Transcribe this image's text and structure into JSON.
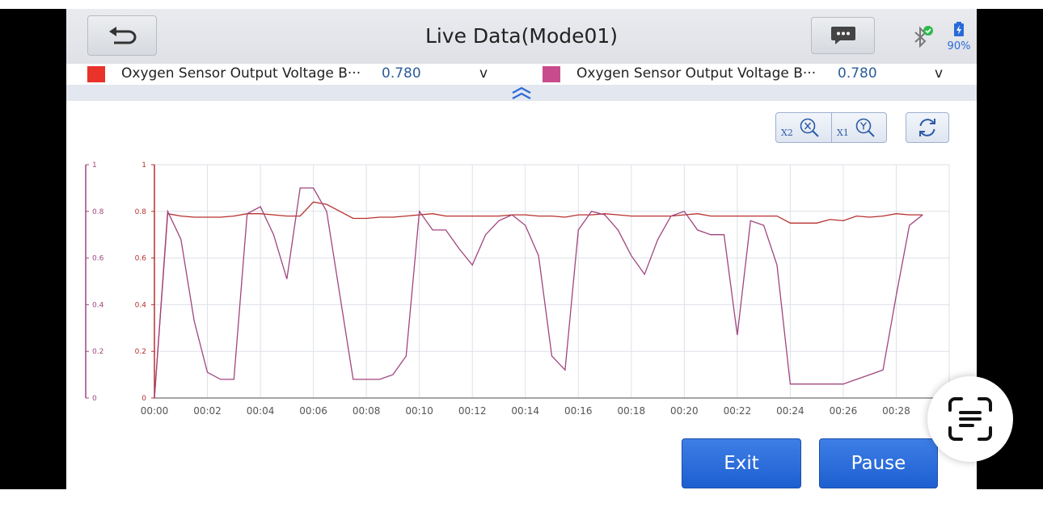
{
  "header": {
    "title": "Live Data(Mode01)",
    "battery_level": "90%"
  },
  "legend": [
    {
      "color": "#e8322a",
      "name": "Oxygen Sensor Output Voltage B···",
      "value": "0.780",
      "unit": "v"
    },
    {
      "color": "#c84b8e",
      "name": "Oxygen Sensor Output Voltage B···",
      "value": "0.780",
      "unit": "v"
    }
  ],
  "zoom": {
    "x_label": "X2",
    "y_label": "X1"
  },
  "buttons": {
    "exit": "Exit",
    "pause": "Pause"
  },
  "chart_data": {
    "type": "line",
    "ylim": [
      0,
      1
    ],
    "yticks": [
      "0",
      "0.2",
      "0.4",
      "0.6",
      "0.8",
      "1"
    ],
    "xticks": [
      "00:00",
      "00:02",
      "00:04",
      "00:06",
      "00:08",
      "00:10",
      "00:12",
      "00:14",
      "00:16",
      "00:18",
      "00:20",
      "00:22",
      "00:24",
      "00:26",
      "00:28"
    ],
    "grid": true,
    "series": [
      {
        "color": "#b8302e",
        "x": [
          0,
          0.5,
          1,
          1.5,
          2,
          2.5,
          3,
          3.5,
          4,
          4.5,
          5,
          5.5,
          6,
          6.5,
          7,
          7.5,
          8,
          8.5,
          9,
          9.5,
          10,
          10.5,
          11,
          11.5,
          12,
          12.5,
          13,
          13.5,
          14,
          14.5,
          15,
          15.5,
          16,
          16.5,
          17,
          17.5,
          18,
          18.5,
          19,
          19.5,
          20,
          20.5,
          21,
          21.5,
          22,
          22.5,
          23,
          23.5,
          24,
          24.5,
          25,
          25.5,
          26,
          26.5,
          27,
          27.5,
          28,
          28.5,
          29
        ],
        "values": [
          0,
          0.79,
          0.78,
          0.775,
          0.775,
          0.775,
          0.78,
          0.79,
          0.79,
          0.785,
          0.78,
          0.78,
          0.84,
          0.83,
          0.8,
          0.77,
          0.77,
          0.775,
          0.775,
          0.78,
          0.785,
          0.79,
          0.78,
          0.78,
          0.78,
          0.78,
          0.78,
          0.785,
          0.785,
          0.78,
          0.78,
          0.775,
          0.785,
          0.785,
          0.79,
          0.785,
          0.78,
          0.78,
          0.78,
          0.78,
          0.785,
          0.79,
          0.78,
          0.78,
          0.78,
          0.78,
          0.78,
          0.78,
          0.75,
          0.75,
          0.75,
          0.765,
          0.76,
          0.78,
          0.775,
          0.78,
          0.79,
          0.785,
          0.785
        ]
      },
      {
        "color": "#a0457e",
        "x": [
          0,
          0.5,
          1,
          1.5,
          2,
          2.5,
          3,
          3.5,
          4,
          4.5,
          5,
          5.5,
          6,
          6.5,
          7,
          7.5,
          8,
          8.5,
          9,
          9.5,
          10,
          10.5,
          11,
          11.5,
          12,
          12.5,
          13,
          13.5,
          14,
          14.5,
          15,
          15.5,
          16,
          16.5,
          17,
          17.5,
          18,
          18.5,
          19,
          19.5,
          20,
          20.5,
          21,
          21.5,
          22,
          22.5,
          23,
          23.5,
          24,
          24.5,
          25,
          25.5,
          26,
          26.5,
          27,
          27.5,
          28,
          28.5,
          29
        ],
        "values": [
          0,
          0.8,
          0.68,
          0.33,
          0.11,
          0.08,
          0.08,
          0.79,
          0.82,
          0.7,
          0.51,
          0.9,
          0.9,
          0.8,
          0.44,
          0.08,
          0.08,
          0.08,
          0.1,
          0.18,
          0.8,
          0.72,
          0.72,
          0.64,
          0.57,
          0.7,
          0.76,
          0.785,
          0.74,
          0.61,
          0.18,
          0.12,
          0.72,
          0.8,
          0.785,
          0.72,
          0.61,
          0.53,
          0.68,
          0.78,
          0.8,
          0.72,
          0.7,
          0.7,
          0.27,
          0.76,
          0.74,
          0.57,
          0.06,
          0.06,
          0.06,
          0.06,
          0.06,
          0.08,
          0.1,
          0.12,
          0.44,
          0.74,
          0.785
        ]
      }
    ]
  }
}
